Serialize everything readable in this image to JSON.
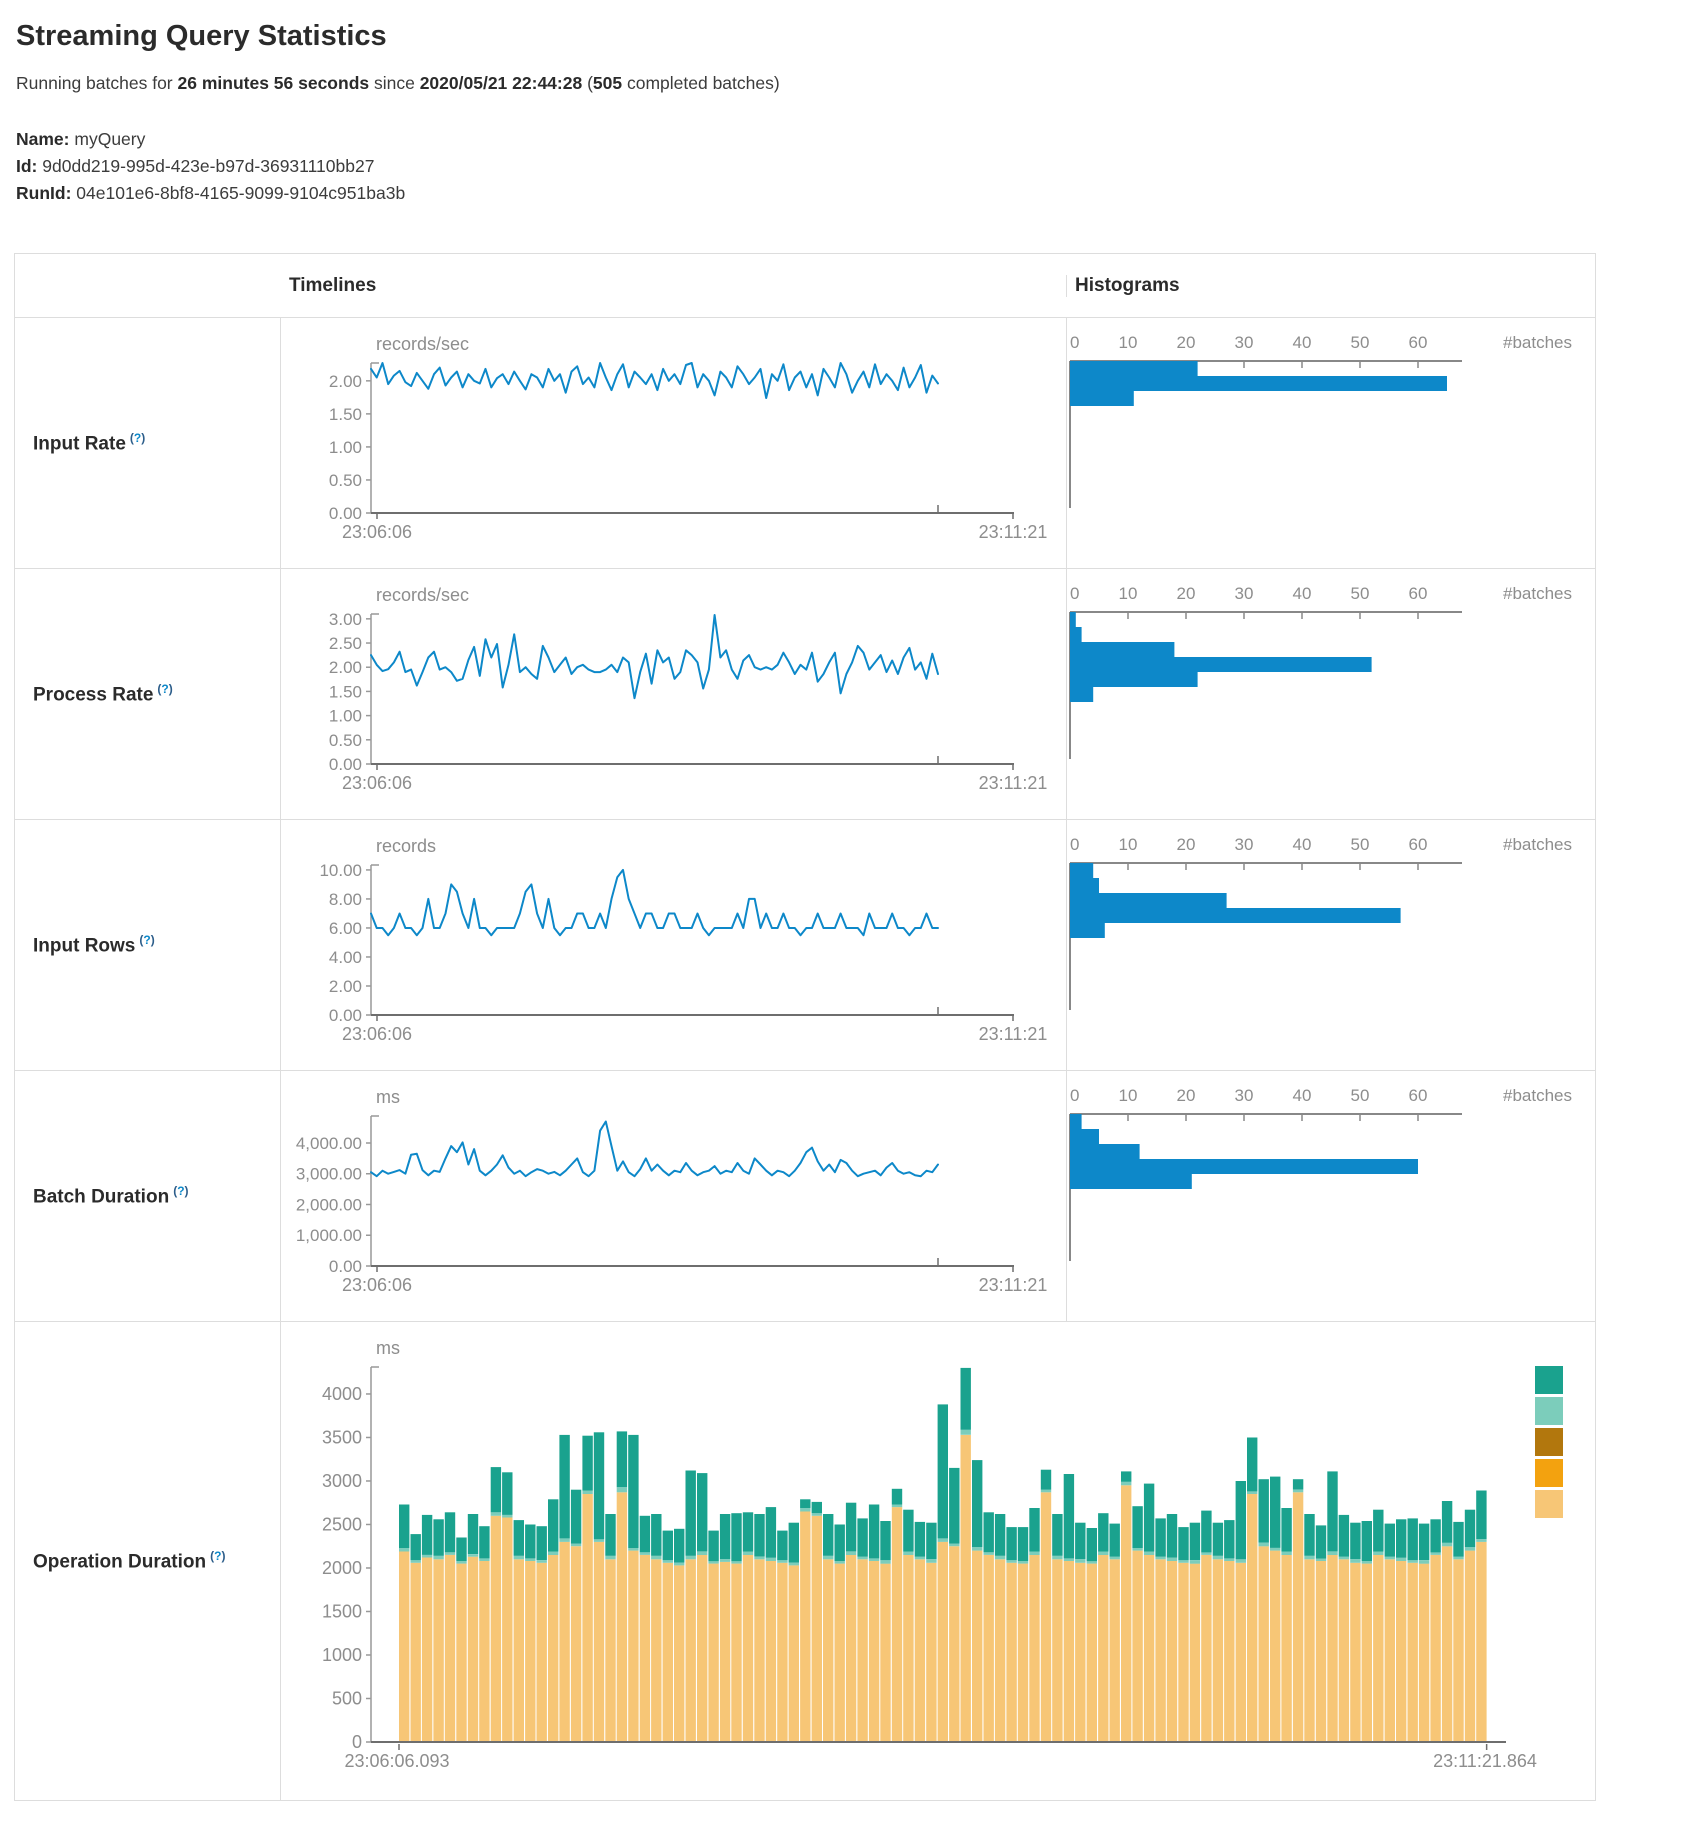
{
  "header": {
    "title": "Streaming Query Statistics",
    "running_prefix": "Running batches for ",
    "duration": "26 minutes 56 seconds",
    "since_word": " since ",
    "start_time": "2020/05/21 22:44:28",
    "paren_open": " (",
    "completed_count": "505",
    "completed_suffix": " completed batches)",
    "name_label": "Name:",
    "name_value": "myQuery",
    "id_label": "Id:",
    "id_value": "9d0dd219-995d-423e-b97d-36931110bb27",
    "runid_label": "RunId:",
    "runid_value": "04e101e6-8bf8-4165-9099-9104c951ba3b"
  },
  "table": {
    "timelines_header": "Timelines",
    "histograms_header": "Histograms",
    "rows": [
      {
        "label": "Input Rate",
        "help": "(?)"
      },
      {
        "label": "Process Rate",
        "help": "(?)"
      },
      {
        "label": "Input Rows",
        "help": "(?)"
      },
      {
        "label": "Batch Duration",
        "help": "(?)"
      },
      {
        "label": "Operation Duration",
        "help": "(?)"
      }
    ]
  },
  "colors": {
    "line_blue": "#0d88c9",
    "hist_blue": "#0d88c9",
    "axis_dark": "#6e6e6e",
    "axis_gray": "#999999",
    "label_gray": "#8d8d8d",
    "teal": "#1aa28e",
    "light_teal": "#7ccdbb",
    "dark_gold": "#b2770d",
    "orange": "#f3a20f",
    "tan": "#f7c676"
  },
  "chart_data": {
    "input_rate": {
      "timeline": {
        "type": "line",
        "unit": "records/sec",
        "x_start": "23:06:06",
        "x_end": "23:11:21",
        "ymax": 2.27,
        "yticks": [
          {
            "v": 2,
            "label": "2.00"
          },
          {
            "v": 1.5,
            "label": "1.50"
          },
          {
            "v": 1,
            "label": "1.00"
          },
          {
            "v": 0.5,
            "label": "0.50"
          },
          {
            "v": 0,
            "label": "0.00"
          }
        ],
        "values": [
          2.18,
          2.05,
          2.27,
          1.95,
          2.08,
          2.15,
          1.98,
          1.92,
          2.12,
          2.0,
          1.88,
          2.1,
          2.2,
          1.93,
          2.05,
          2.14,
          1.9,
          2.1,
          2.0,
          1.96,
          2.18,
          1.9,
          2.04,
          2.1,
          1.95,
          2.14,
          2.0,
          1.87,
          2.1,
          2.05,
          1.9,
          2.18,
          2.0,
          2.1,
          1.82,
          2.14,
          2.22,
          1.95,
          2.05,
          1.9,
          2.27,
          2.05,
          1.86,
          2.1,
          2.25,
          1.9,
          2.14,
          2.05,
          1.95,
          2.1,
          1.86,
          2.18,
          2.0,
          2.1,
          1.95,
          2.24,
          2.27,
          1.9,
          2.1,
          2.0,
          1.78,
          2.14,
          2.05,
          1.9,
          2.22,
          2.1,
          1.95,
          2.05,
          2.18,
          1.74,
          2.1,
          2.0,
          2.25,
          1.86,
          2.05,
          2.14,
          1.9,
          2.1,
          1.78,
          2.18,
          2.05,
          1.9,
          2.27,
          2.1,
          1.82,
          2.0,
          2.14,
          1.9,
          2.25,
          1.95,
          2.1,
          2.0,
          1.86,
          2.2,
          1.9,
          2.05,
          2.24,
          1.82,
          2.08,
          1.96
        ]
      },
      "histogram": {
        "type": "bar-horizontal",
        "xlabel": "#batches",
        "xticks": [
          0,
          10,
          20,
          30,
          40,
          50,
          60
        ],
        "values": [
          22,
          65,
          11
        ]
      }
    },
    "process_rate": {
      "timeline": {
        "type": "line",
        "unit": "records/sec",
        "x_start": "23:06:06",
        "x_end": "23:11:21",
        "ymax": 3.1,
        "yticks": [
          {
            "v": 3,
            "label": "3.00"
          },
          {
            "v": 2.5,
            "label": "2.50"
          },
          {
            "v": 2,
            "label": "2.00"
          },
          {
            "v": 1.5,
            "label": "1.50"
          },
          {
            "v": 1,
            "label": "1.00"
          },
          {
            "v": 0.5,
            "label": "0.50"
          },
          {
            "v": 0,
            "label": "0.00"
          }
        ],
        "values": [
          2.25,
          2.05,
          1.92,
          1.96,
          2.1,
          2.32,
          1.9,
          1.95,
          1.62,
          1.9,
          2.2,
          2.32,
          1.95,
          2.0,
          1.9,
          1.72,
          1.76,
          2.15,
          2.42,
          1.82,
          2.58,
          2.2,
          2.48,
          1.58,
          2.05,
          2.68,
          1.9,
          2.0,
          1.86,
          1.76,
          2.44,
          2.2,
          1.9,
          2.05,
          2.2,
          1.86,
          2.0,
          2.05,
          1.95,
          1.9,
          1.9,
          1.95,
          2.05,
          1.9,
          2.2,
          2.1,
          1.36,
          1.9,
          2.28,
          1.66,
          2.35,
          2.1,
          2.2,
          1.76,
          1.9,
          2.35,
          2.25,
          2.1,
          1.56,
          1.95,
          3.08,
          2.2,
          2.35,
          1.95,
          1.76,
          2.14,
          2.25,
          2.0,
          1.95,
          2.0,
          1.95,
          2.05,
          2.3,
          2.1,
          1.86,
          2.05,
          1.95,
          2.3,
          1.7,
          1.86,
          2.1,
          2.3,
          1.46,
          1.86,
          2.1,
          2.44,
          2.3,
          1.95,
          2.1,
          2.25,
          1.9,
          2.14,
          1.86,
          2.2,
          2.4,
          1.95,
          2.1,
          1.76,
          2.28,
          1.86
        ]
      },
      "histogram": {
        "type": "bar-horizontal",
        "xlabel": "#batches",
        "xticks": [
          0,
          10,
          20,
          30,
          40,
          50,
          60
        ],
        "values": [
          1,
          2,
          18,
          52,
          22,
          4
        ]
      }
    },
    "input_rows": {
      "timeline": {
        "type": "line",
        "unit": "records",
        "x_start": "23:06:06",
        "x_end": "23:11:21",
        "ymax": 10.34,
        "yticks": [
          {
            "v": 10,
            "label": "10.00"
          },
          {
            "v": 8,
            "label": "8.00"
          },
          {
            "v": 6,
            "label": "6.00"
          },
          {
            "v": 4,
            "label": "4.00"
          },
          {
            "v": 2,
            "label": "2.00"
          },
          {
            "v": 0,
            "label": "0.00"
          }
        ],
        "values": [
          7,
          6,
          6,
          5.5,
          6,
          7,
          6,
          6,
          5.5,
          6,
          8,
          6,
          6,
          7,
          9,
          8.5,
          7,
          6,
          8,
          6,
          6,
          5.5,
          6,
          6,
          6,
          6,
          7,
          8.5,
          9,
          7,
          6,
          8,
          6,
          5.5,
          6,
          6,
          7,
          7,
          6,
          6,
          7,
          6,
          8,
          9.5,
          10,
          8,
          7,
          6,
          7,
          7,
          6,
          6,
          7,
          7,
          6,
          6,
          6,
          7,
          6,
          5.5,
          6,
          6,
          6,
          6,
          7,
          6,
          8,
          8,
          6,
          7,
          6,
          6,
          7,
          6,
          6,
          5.5,
          6,
          6,
          7,
          6,
          6,
          6,
          7,
          6,
          6,
          6,
          5.5,
          7,
          6,
          6,
          6,
          7,
          6,
          6,
          5.5,
          6,
          6,
          7,
          6,
          6
        ]
      },
      "histogram": {
        "type": "bar-horizontal",
        "xlabel": "#batches",
        "xticks": [
          0,
          10,
          20,
          30,
          40,
          50,
          60
        ],
        "values": [
          4,
          5,
          27,
          57,
          6
        ]
      }
    },
    "batch_duration": {
      "timeline": {
        "type": "line",
        "unit": "ms",
        "x_start": "23:06:06",
        "x_end": "23:11:21",
        "ymax": 4878,
        "yticks": [
          {
            "v": 4000,
            "label": "4,000.00"
          },
          {
            "v": 3000,
            "label": "3,000.00"
          },
          {
            "v": 2000,
            "label": "2,000.00"
          },
          {
            "v": 1000,
            "label": "1,000.00"
          },
          {
            "v": 0,
            "label": "0.00"
          }
        ],
        "values": [
          3050,
          2920,
          3100,
          3000,
          3060,
          3120,
          3000,
          3620,
          3650,
          3120,
          2950,
          3100,
          3060,
          3500,
          3900,
          3700,
          4020,
          3300,
          3800,
          3100,
          2950,
          3100,
          3300,
          3600,
          3200,
          3000,
          3100,
          2920,
          3050,
          3150,
          3100,
          3000,
          3060,
          2950,
          3100,
          3300,
          3500,
          3050,
          2920,
          3100,
          4400,
          4700,
          3900,
          3100,
          3400,
          3050,
          2920,
          3150,
          3500,
          3100,
          3300,
          3100,
          2950,
          3100,
          3050,
          3350,
          3100,
          2950,
          3050,
          3100,
          3250,
          3000,
          3100,
          3050,
          3350,
          3100,
          3000,
          3500,
          3300,
          3100,
          2950,
          3100,
          3050,
          2920,
          3100,
          3350,
          3700,
          3850,
          3400,
          3100,
          3300,
          3050,
          3450,
          3350,
          3100,
          2920,
          3000,
          3050,
          3100,
          2950,
          3200,
          3350,
          3100,
          3000,
          3050,
          2950,
          2920,
          3100,
          3050,
          3300
        ]
      },
      "histogram": {
        "type": "bar-horizontal",
        "xlabel": "#batches",
        "xticks": [
          0,
          10,
          20,
          30,
          40,
          50,
          60
        ],
        "values": [
          2,
          5,
          12,
          60,
          21
        ]
      }
    },
    "operation_duration": {
      "type": "stacked-bar",
      "unit": "ms",
      "x_start": "23:06:06.093",
      "x_end": "23:11:21.864",
      "ymax": 4310,
      "yticks": [
        {
          "v": 4000,
          "label": "4000"
        },
        {
          "v": 3500,
          "label": "3500"
        },
        {
          "v": 3000,
          "label": "3000"
        },
        {
          "v": 2500,
          "label": "2500"
        },
        {
          "v": 2000,
          "label": "2000"
        },
        {
          "v": 1500,
          "label": "1500"
        },
        {
          "v": 1000,
          "label": "1000"
        },
        {
          "v": 500,
          "label": "500"
        },
        {
          "v": 0,
          "label": "0"
        }
      ],
      "segment_colors": [
        "#f7c676",
        "#7ccdbb",
        "#1aa28e"
      ],
      "legend_colors": [
        "#1aa28e",
        "#7ccdbb",
        "#b2770d",
        "#f3a20f",
        "#f7c676"
      ],
      "bars": [
        [
          2190,
          40,
          500
        ],
        [
          2060,
          30,
          300
        ],
        [
          2120,
          30,
          460
        ],
        [
          2100,
          40,
          420
        ],
        [
          2150,
          30,
          460
        ],
        [
          2050,
          30,
          270
        ],
        [
          2130,
          30,
          460
        ],
        [
          2080,
          30,
          370
        ],
        [
          2600,
          40,
          520
        ],
        [
          2580,
          30,
          490
        ],
        [
          2100,
          40,
          410
        ],
        [
          2080,
          30,
          390
        ],
        [
          2060,
          30,
          390
        ],
        [
          2150,
          40,
          600
        ],
        [
          2300,
          40,
          1190
        ],
        [
          2250,
          30,
          620
        ],
        [
          2850,
          40,
          630
        ],
        [
          2300,
          30,
          1230
        ],
        [
          2100,
          40,
          480
        ],
        [
          2870,
          60,
          640
        ],
        [
          2200,
          30,
          1300
        ],
        [
          2150,
          30,
          420
        ],
        [
          2100,
          40,
          480
        ],
        [
          2060,
          30,
          340
        ],
        [
          2030,
          30,
          390
        ],
        [
          2100,
          40,
          980
        ],
        [
          2150,
          40,
          900
        ],
        [
          2050,
          30,
          350
        ],
        [
          2070,
          30,
          520
        ],
        [
          2050,
          30,
          550
        ],
        [
          2150,
          40,
          450
        ],
        [
          2100,
          30,
          490
        ],
        [
          2080,
          40,
          580
        ],
        [
          2060,
          30,
          340
        ],
        [
          2030,
          30,
          460
        ],
        [
          2650,
          40,
          100
        ],
        [
          2600,
          30,
          130
        ],
        [
          2100,
          40,
          480
        ],
        [
          2050,
          30,
          420
        ],
        [
          2150,
          40,
          560
        ],
        [
          2100,
          30,
          440
        ],
        [
          2080,
          30,
          620
        ],
        [
          2050,
          40,
          450
        ],
        [
          2700,
          30,
          180
        ],
        [
          2150,
          40,
          480
        ],
        [
          2100,
          30,
          400
        ],
        [
          2060,
          40,
          420
        ],
        [
          2300,
          40,
          1540
        ],
        [
          2250,
          30,
          870
        ],
        [
          3530,
          60,
          710
        ],
        [
          2200,
          40,
          1000
        ],
        [
          2150,
          30,
          460
        ],
        [
          2100,
          40,
          480
        ],
        [
          2060,
          30,
          380
        ],
        [
          2050,
          30,
          390
        ],
        [
          2150,
          40,
          500
        ],
        [
          2870,
          30,
          230
        ],
        [
          2100,
          40,
          480
        ],
        [
          2080,
          30,
          970
        ],
        [
          2060,
          40,
          420
        ],
        [
          2050,
          30,
          380
        ],
        [
          2150,
          40,
          440
        ],
        [
          2100,
          30,
          380
        ],
        [
          2950,
          40,
          120
        ],
        [
          2200,
          30,
          480
        ],
        [
          2150,
          40,
          780
        ],
        [
          2100,
          30,
          440
        ],
        [
          2080,
          40,
          500
        ],
        [
          2060,
          30,
          380
        ],
        [
          2050,
          40,
          430
        ],
        [
          2150,
          30,
          480
        ],
        [
          2100,
          40,
          380
        ],
        [
          2080,
          30,
          440
        ],
        [
          2060,
          40,
          900
        ],
        [
          2850,
          30,
          620
        ],
        [
          2250,
          40,
          730
        ],
        [
          2200,
          30,
          820
        ],
        [
          2150,
          40,
          500
        ],
        [
          2870,
          30,
          120
        ],
        [
          2100,
          40,
          480
        ],
        [
          2080,
          30,
          380
        ],
        [
          2150,
          40,
          920
        ],
        [
          2100,
          30,
          480
        ],
        [
          2060,
          40,
          420
        ],
        [
          2050,
          30,
          460
        ],
        [
          2150,
          40,
          480
        ],
        [
          2100,
          30,
          380
        ],
        [
          2080,
          40,
          440
        ],
        [
          2060,
          30,
          480
        ],
        [
          2050,
          40,
          420
        ],
        [
          2150,
          30,
          380
        ],
        [
          2250,
          40,
          480
        ],
        [
          2100,
          30,
          400
        ],
        [
          2200,
          40,
          430
        ],
        [
          2300,
          30,
          560
        ]
      ]
    }
  }
}
